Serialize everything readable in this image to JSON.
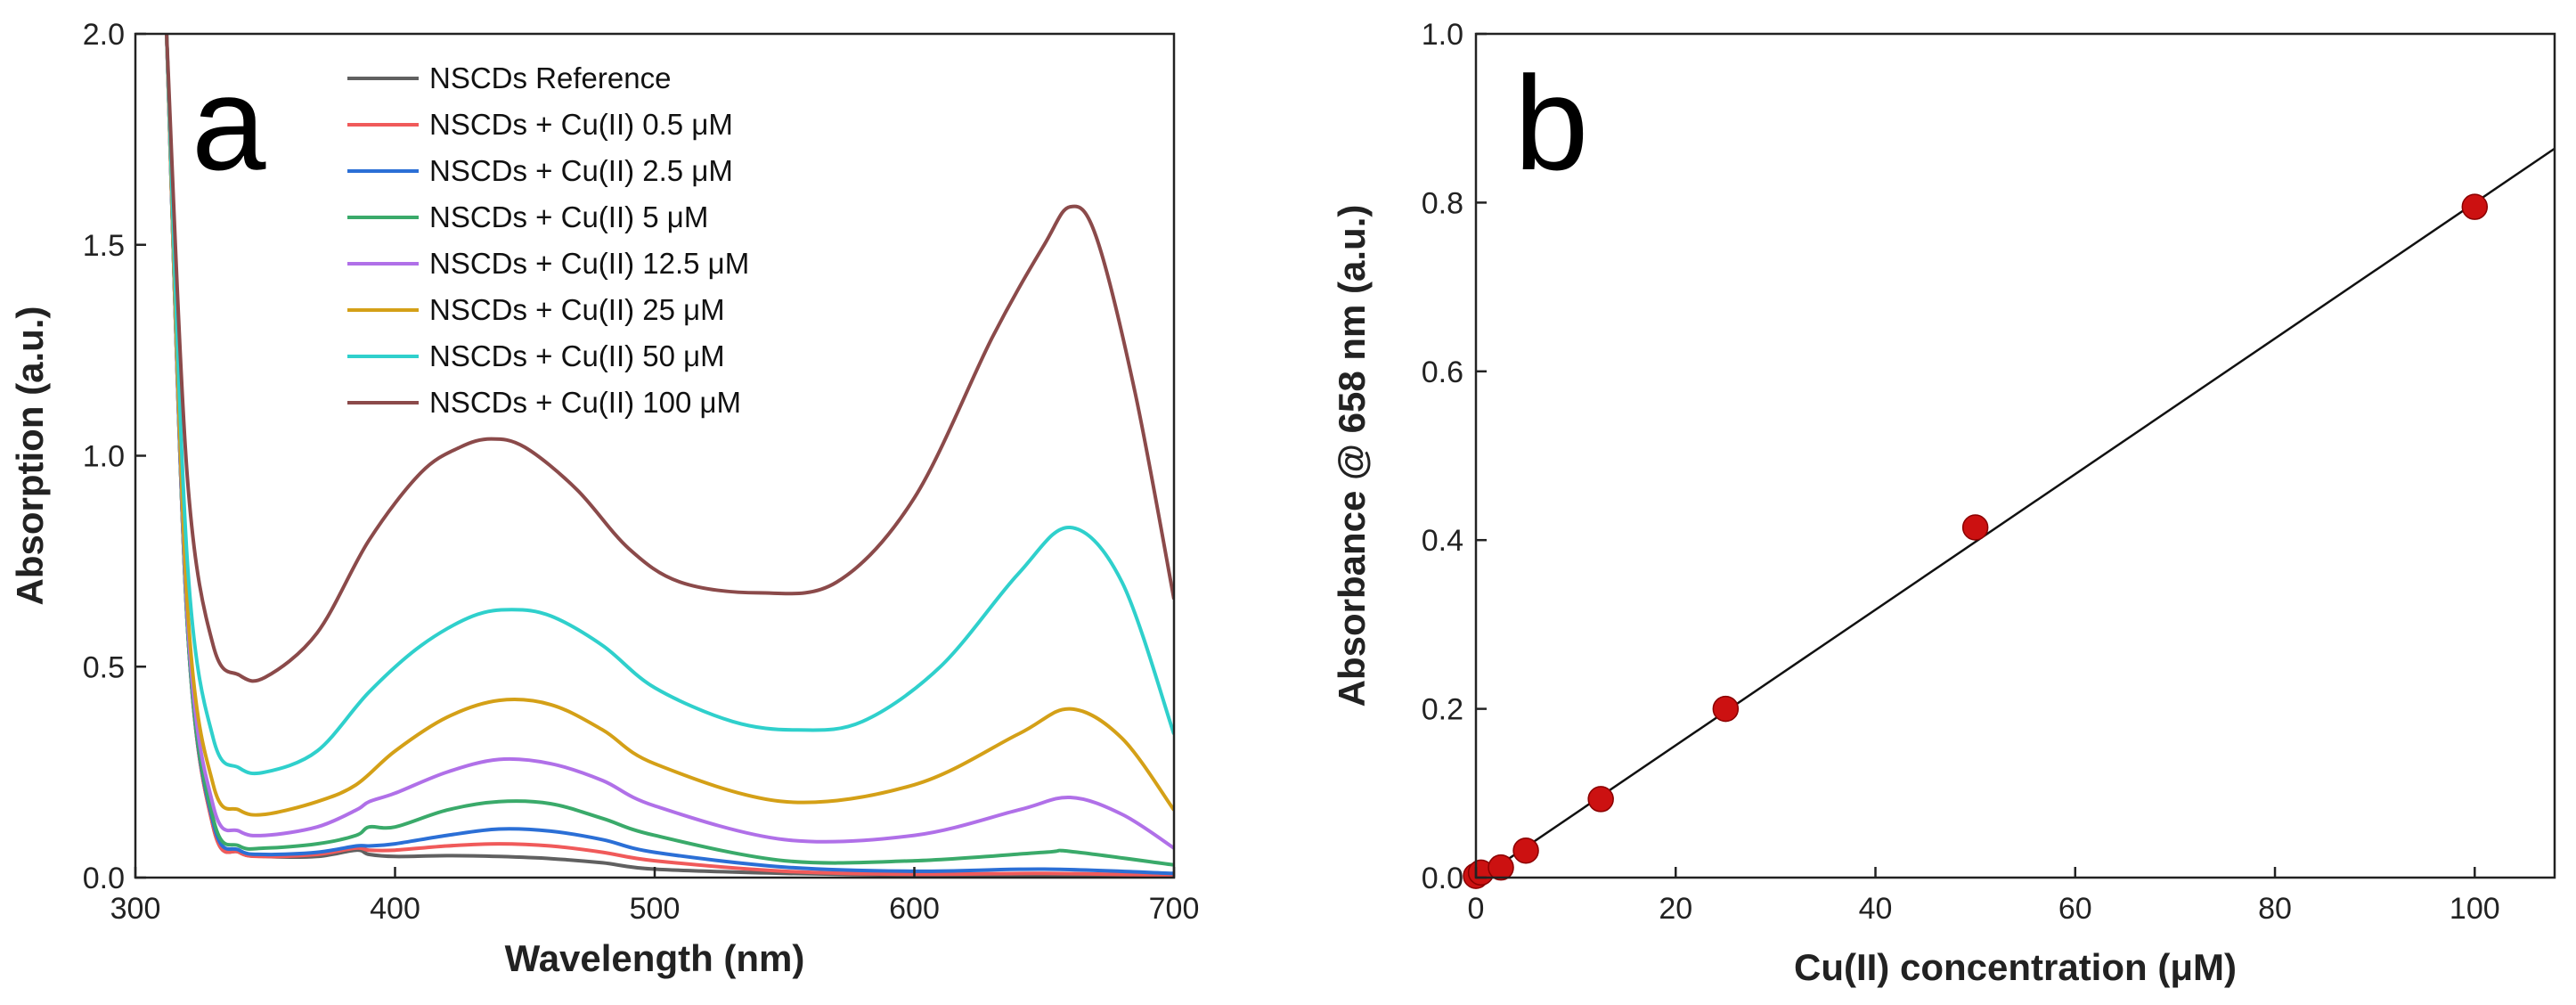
{
  "chart_data": [
    {
      "type": "line",
      "panel_label": "a",
      "xlabel": "Wavelength (nm)",
      "ylabel": "Absorption (a.u.)",
      "xlim": [
        300,
        700
      ],
      "ylim": [
        0,
        2.0
      ],
      "xticks": [
        300,
        400,
        500,
        600,
        700
      ],
      "yticks": [
        0.0,
        0.5,
        1.0,
        1.5,
        2.0
      ],
      "xtick_labels": [
        "300",
        "400",
        "500",
        "600",
        "700"
      ],
      "ytick_labels": [
        "0.0",
        "0.5",
        "1.0",
        "1.5",
        "2.0"
      ],
      "legend_position": "top-center",
      "series": [
        {
          "name": "NSCDs Reference",
          "color": "#606060",
          "x": [
            312,
            320,
            330,
            340,
            350,
            370,
            385,
            390,
            400,
            420,
            440,
            460,
            480,
            500,
            550,
            600,
            650,
            700
          ],
          "y": [
            2.0,
            0.6,
            0.12,
            0.06,
            0.05,
            0.05,
            0.065,
            0.055,
            0.05,
            0.052,
            0.05,
            0.045,
            0.035,
            0.02,
            0.01,
            0.005,
            0.005,
            0.0
          ]
        },
        {
          "name": "NSCDs + Cu(II)   0.5 μM",
          "color": "#f05a5a",
          "x": [
            312,
            320,
            330,
            340,
            350,
            370,
            385,
            390,
            400,
            420,
            440,
            460,
            480,
            500,
            550,
            600,
            650,
            700
          ],
          "y": [
            2.0,
            0.6,
            0.12,
            0.06,
            0.05,
            0.055,
            0.07,
            0.065,
            0.065,
            0.075,
            0.08,
            0.075,
            0.06,
            0.04,
            0.015,
            0.008,
            0.01,
            0.005
          ]
        },
        {
          "name": "NSCDs + Cu(II)   2.5 μM",
          "color": "#2b6fd6",
          "x": [
            312,
            320,
            330,
            340,
            350,
            370,
            385,
            390,
            400,
            420,
            440,
            460,
            480,
            500,
            550,
            600,
            650,
            700
          ],
          "y": [
            2.0,
            0.6,
            0.13,
            0.065,
            0.055,
            0.06,
            0.075,
            0.075,
            0.08,
            0.1,
            0.115,
            0.11,
            0.09,
            0.06,
            0.025,
            0.015,
            0.02,
            0.01
          ]
        },
        {
          "name": "NSCDs + Cu(II)   5  μM",
          "color": "#3aaa6a",
          "x": [
            312,
            320,
            330,
            340,
            350,
            370,
            385,
            390,
            400,
            420,
            440,
            460,
            480,
            500,
            550,
            600,
            650,
            660,
            700
          ],
          "y": [
            2.0,
            0.6,
            0.14,
            0.075,
            0.07,
            0.08,
            0.1,
            0.12,
            0.12,
            0.16,
            0.18,
            0.175,
            0.14,
            0.1,
            0.04,
            0.04,
            0.06,
            0.062,
            0.03
          ]
        },
        {
          "name": "NSCDs + Cu(II)   12.5 μM",
          "color": "#b070e8",
          "x": [
            312,
            320,
            330,
            340,
            350,
            370,
            385,
            390,
            400,
            420,
            440,
            460,
            480,
            500,
            550,
            600,
            640,
            660,
            680,
            700
          ],
          "y": [
            2.0,
            0.62,
            0.17,
            0.11,
            0.1,
            0.12,
            0.16,
            0.18,
            0.2,
            0.25,
            0.28,
            0.27,
            0.23,
            0.17,
            0.09,
            0.1,
            0.16,
            0.19,
            0.15,
            0.07
          ]
        },
        {
          "name": "NSCDs + Cu(II)   25  μM",
          "color": "#d4a017",
          "x": [
            312,
            320,
            330,
            340,
            350,
            370,
            385,
            400,
            420,
            440,
            460,
            480,
            500,
            550,
            600,
            640,
            660,
            680,
            700
          ],
          "y": [
            2.0,
            0.65,
            0.22,
            0.16,
            0.15,
            0.18,
            0.22,
            0.3,
            0.38,
            0.42,
            0.41,
            0.35,
            0.27,
            0.18,
            0.22,
            0.34,
            0.4,
            0.33,
            0.16
          ]
        },
        {
          "name": "NSCDs + Cu(II)   50  μM",
          "color": "#2fd0cc",
          "x": [
            312,
            320,
            330,
            340,
            350,
            370,
            390,
            410,
            430,
            445,
            460,
            480,
            500,
            530,
            555,
            580,
            610,
            640,
            660,
            680,
            700
          ],
          "y": [
            2.0,
            0.75,
            0.33,
            0.26,
            0.25,
            0.3,
            0.44,
            0.55,
            0.62,
            0.635,
            0.62,
            0.55,
            0.45,
            0.37,
            0.35,
            0.37,
            0.5,
            0.72,
            0.83,
            0.7,
            0.34
          ]
        },
        {
          "name": "NSCDs + Cu(II) 100 μM",
          "color": "#8b4a4a",
          "x": [
            312,
            320,
            330,
            340,
            350,
            370,
            390,
            410,
            425,
            437,
            450,
            470,
            490,
            510,
            540,
            570,
            600,
            630,
            650,
            660,
            670,
            685,
            700
          ],
          "y": [
            2.0,
            0.95,
            0.55,
            0.48,
            0.475,
            0.58,
            0.8,
            0.96,
            1.02,
            1.04,
            1.02,
            0.92,
            0.78,
            0.7,
            0.675,
            0.7,
            0.9,
            1.28,
            1.5,
            1.59,
            1.52,
            1.15,
            0.66
          ]
        }
      ]
    },
    {
      "type": "scatter",
      "panel_label": "b",
      "xlabel": "Cu(II) concentration (μM)",
      "ylabel": "Absorbance @ 658 nm (a.u.)",
      "xlim": [
        0,
        108
      ],
      "ylim": [
        0,
        1.0
      ],
      "xticks": [
        0,
        20,
        40,
        60,
        80,
        100
      ],
      "yticks": [
        0.0,
        0.2,
        0.4,
        0.6,
        0.8,
        1.0
      ],
      "xtick_labels": [
        "0",
        "20",
        "40",
        "60",
        "80",
        "100"
      ],
      "ytick_labels": [
        "0.0",
        "0.2",
        "0.4",
        "0.6",
        "0.8",
        "1.0"
      ],
      "points": {
        "x": [
          0,
          0.5,
          2.5,
          5,
          12.5,
          25,
          50,
          100
        ],
        "y": [
          0.002,
          0.006,
          0.012,
          0.032,
          0.093,
          0.2,
          0.415,
          0.795
        ],
        "color": "#cc1111"
      },
      "fit_line": {
        "x": [
          0,
          108
        ],
        "y": [
          -0.004,
          0.864
        ],
        "color": "#111111"
      }
    }
  ]
}
